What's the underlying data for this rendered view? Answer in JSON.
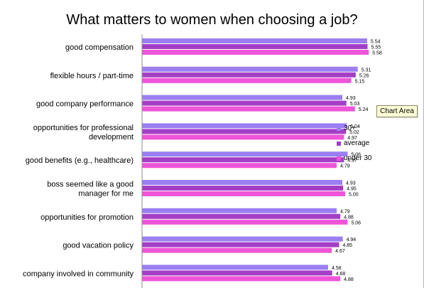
{
  "chart_data": {
    "type": "bar",
    "orientation": "horizontal",
    "title": "What matters to women when choosing a job?",
    "categories": [
      "good compensation",
      "flexible hours / part-time",
      "good company performance",
      "opportunities for professional development",
      "good benefits (e.g., healthcare)",
      "boss seemed like a good manager for me",
      "opportunities for promotion",
      "good vacation policy",
      "company involved in community"
    ],
    "category_lines": [
      [
        "good compensation"
      ],
      [
        "flexible hours / part-time"
      ],
      [
        "good company performance"
      ],
      [
        "opportunities for professional",
        "development"
      ],
      [
        "good benefits (e.g., healthcare)"
      ],
      [
        "boss seemed like a good",
        "manager for me"
      ],
      [
        "opportunities for promotion"
      ],
      [
        "good vacation policy"
      ],
      [
        "company involved in community"
      ]
    ],
    "series": [
      {
        "name": "30+",
        "color": "#9b7ff2",
        "values": [
          5.54,
          5.31,
          4.93,
          5.04,
          5.06,
          4.93,
          4.79,
          4.94,
          4.58
        ],
        "labels": [
          "5.54",
          "5.31",
          "4.93",
          "5.04",
          "5.06",
          "4.93",
          "4.79",
          "4.94",
          "4.58"
        ]
      },
      {
        "name": "average",
        "color": "#a33fc6",
        "values": [
          5.55,
          5.26,
          5.03,
          5.02,
          4.97,
          4.95,
          4.88,
          4.85,
          4.68
        ],
        "labels": [
          "5.55",
          "5.26",
          "5.03",
          "5.02",
          "4.97",
          "4.95",
          "4.88",
          "4.85",
          "4.68"
        ]
      },
      {
        "name": "under 30",
        "color": "#ee55d8",
        "values": [
          5.58,
          5.15,
          5.24,
          4.97,
          4.79,
          5.0,
          5.06,
          4.67,
          4.88
        ],
        "labels": [
          "5.58",
          "5.15",
          "5.24",
          "4.97",
          "4.79",
          "5.00",
          "5.06",
          "4.67",
          "4.88"
        ]
      }
    ],
    "xlim": [
      0,
      6.94
    ],
    "legend_position": "right",
    "grid": false,
    "xlabel": "",
    "ylabel": ""
  },
  "tooltip": {
    "text": "Chart Area"
  }
}
